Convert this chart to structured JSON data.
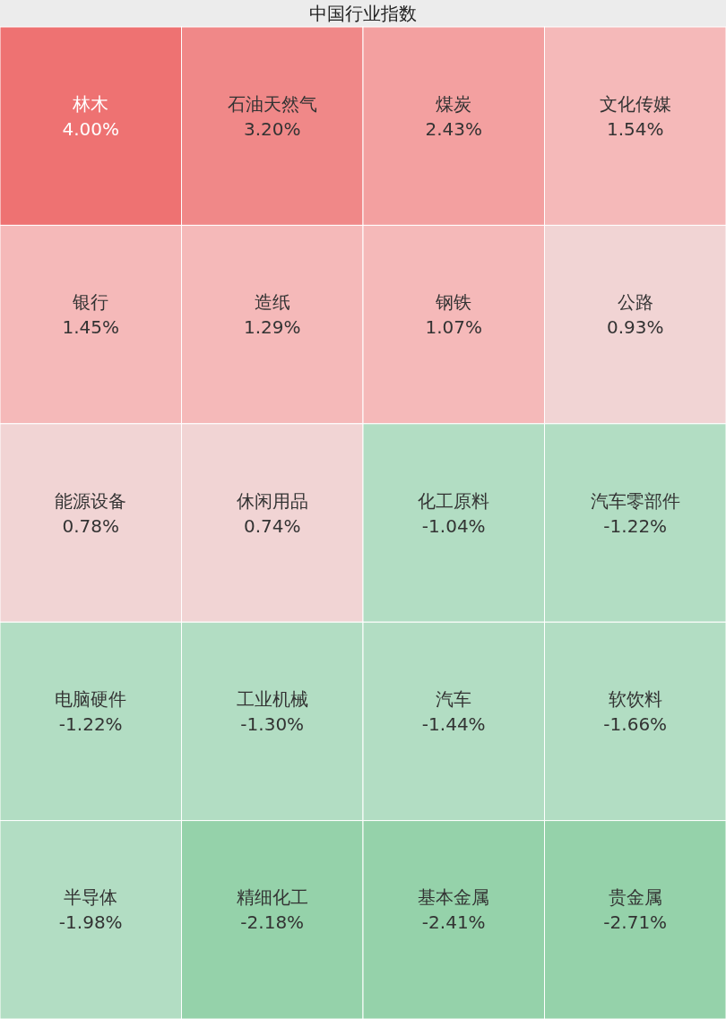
{
  "chart_data": {
    "type": "other",
    "title": "中国行业指数",
    "categories": [
      "林木",
      "石油天然气",
      "煤炭",
      "文化传媒",
      "银行",
      "造纸",
      "钢铁",
      "公路",
      "能源设备",
      "休闲用品",
      "化工原料",
      "汽车零部件",
      "电脑硬件",
      "工业机械",
      "汽车",
      "软饮料",
      "半导体",
      "精细化工",
      "基本金属",
      "贵金属"
    ],
    "values": [
      4.0,
      3.2,
      2.43,
      1.54,
      1.45,
      1.29,
      1.07,
      0.93,
      0.78,
      0.74,
      -1.04,
      -1.22,
      -1.22,
      -1.3,
      -1.44,
      -1.66,
      -1.98,
      -2.18,
      -2.41,
      -2.71
    ],
    "value_labels": [
      "4.00%",
      "3.20%",
      "2.43%",
      "1.54%",
      "1.45%",
      "1.29%",
      "1.07%",
      "0.93%",
      "0.78%",
      "0.74%",
      "-1.04%",
      "-1.22%",
      "-1.22%",
      "-1.30%",
      "-1.44%",
      "-1.66%",
      "-1.98%",
      "-2.18%",
      "-2.41%",
      "-2.71%"
    ],
    "colors": [
      "#ee7272",
      "#f08888",
      "#f3a0a0",
      "#f5b9b9",
      "#f5b9b9",
      "#f5b9b9",
      "#f5b9b9",
      "#f1d4d4",
      "#f1d4d4",
      "#f1d4d4",
      "#b2ddc3",
      "#b2ddc3",
      "#b2ddc3",
      "#b2ddc3",
      "#b2ddc3",
      "#b2ddc3",
      "#b2ddc3",
      "#95d2aa",
      "#95d2aa",
      "#95d2aa"
    ]
  }
}
